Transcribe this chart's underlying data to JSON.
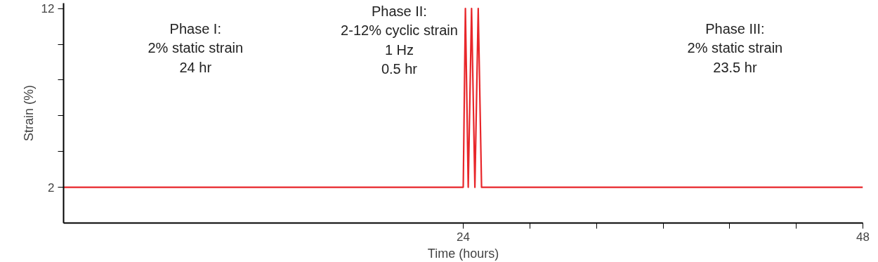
{
  "chart_data": {
    "type": "line",
    "xlabel": "Time (hours)",
    "ylabel": "Strain (%)",
    "x": [
      0,
      24,
      24.13,
      24.3,
      24.5,
      24.7,
      24.9,
      25.1,
      48
    ],
    "series": [
      {
        "color": "#e8262a",
        "values": [
          2,
          2,
          12,
          2,
          12,
          2,
          12,
          2,
          2
        ]
      }
    ],
    "xlim": [
      0,
      48
    ],
    "ylim": [
      0,
      12.3
    ],
    "xticks": [
      24,
      {
        "value": 28,
        "label": null
      },
      {
        "value": 32,
        "label": null
      },
      {
        "value": 36,
        "label": null
      },
      {
        "value": 40,
        "label": null
      },
      {
        "value": 44,
        "label": null
      },
      48
    ],
    "yticks": [
      2,
      {
        "value": 4,
        "label": null
      },
      {
        "value": 6,
        "label": null
      },
      {
        "value": 8,
        "label": null
      },
      {
        "value": 10,
        "label": null
      },
      12
    ],
    "annotations": [
      "Phase I:\n2% static strain\n24 hr",
      "Phase II:\n2-12% cyclic strain\n1 Hz\n0.5 hr",
      "Phase III:\n2% static strain\n23.5 hr"
    ],
    "grid": false,
    "marker": "none",
    "line_style": "solid"
  }
}
